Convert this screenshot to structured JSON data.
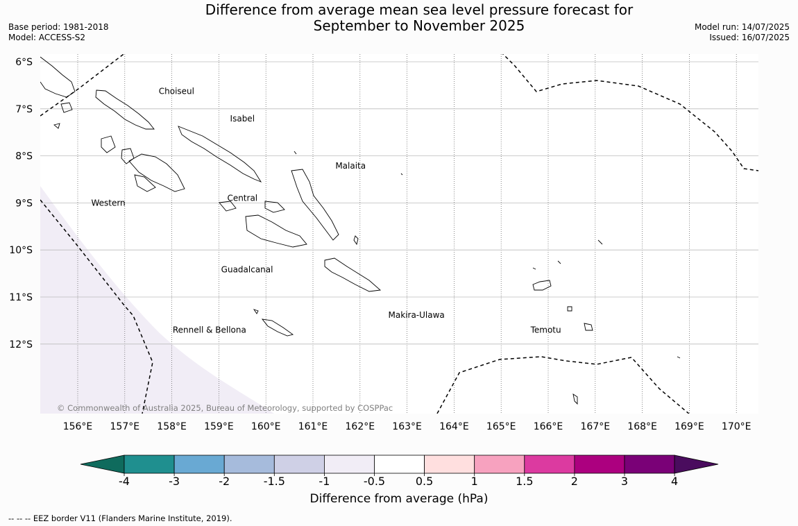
{
  "title_line1": "Difference from average mean sea level pressure forecast for",
  "title_line2": "September to November 2025",
  "meta_left": {
    "base_period": "Base period: 1981-2018",
    "model": "Model: ACCESS-S2"
  },
  "meta_right": {
    "model_run": "Model run: 14/07/2025",
    "issued": "Issued: 16/07/2025"
  },
  "copyright": "© Commonwealth of Australia 2025, Bureau of Meteorology, supported by COSPPac",
  "footer": "--  --  -- EEZ border V11 (Flanders Marine Institute, 2019).",
  "map": {
    "lon_labels": [
      "156°E",
      "157°E",
      "158°E",
      "159°E",
      "160°E",
      "161°E",
      "162°E",
      "163°E",
      "164°E",
      "165°E",
      "166°E",
      "167°E",
      "168°E",
      "169°E",
      "170°E"
    ],
    "lat_labels": [
      "6°S",
      "7°S",
      "8°S",
      "9°S",
      "10°S",
      "11°S",
      "12°S"
    ],
    "regions": [
      {
        "name": "Choiseul",
        "lon": 158.1,
        "lat": -6.63
      },
      {
        "name": "Isabel",
        "lon": 159.5,
        "lat": -7.21
      },
      {
        "name": "Malaita",
        "lon": 161.8,
        "lat": -8.21
      },
      {
        "name": "Western",
        "lon": 156.65,
        "lat": -9.0
      },
      {
        "name": "Central",
        "lon": 159.5,
        "lat": -8.9
      },
      {
        "name": "Guadalcanal",
        "lon": 159.6,
        "lat": -10.42
      },
      {
        "name": "Makira-Ulawa",
        "lon": 163.2,
        "lat": -11.38
      },
      {
        "name": "Rennell & Bellona",
        "lon": 158.8,
        "lat": -11.7
      },
      {
        "name": "Temotu",
        "lon": 165.95,
        "lat": -11.7
      }
    ]
  },
  "colorbar": {
    "title": "Difference from average (hPa)",
    "ticks": [
      "-4",
      "-3",
      "-2",
      "-1.5",
      "-1",
      "-0.5",
      "0.5",
      "1",
      "1.5",
      "2",
      "3",
      "4"
    ],
    "colors": [
      "#1f8f8f",
      "#69a9d3",
      "#a6bbdc",
      "#cfd0e6",
      "#f1edf6",
      "#ffffff",
      "#ffdfdf",
      "#f7a2bf",
      "#dc3aa0",
      "#ac007f",
      "#7a0177"
    ],
    "under_color": "#0f6b5d",
    "over_color": "#4a0c5e"
  },
  "shading": {
    "value_hpa": "-1 to -0.5",
    "color": "#f1edf6"
  }
}
